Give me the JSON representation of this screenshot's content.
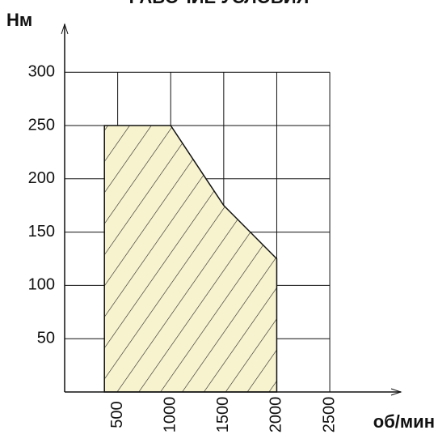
{
  "chart_data": {
    "type": "area",
    "title": "РАБОЧИЕ УСЛОВИЯ",
    "y_label": "Нм",
    "x_label": "об/мин",
    "series": [
      {
        "x": [
          375,
          375,
          1000,
          1500,
          2000,
          2000
        ],
        "values": [
          0,
          250,
          250,
          175,
          125,
          0
        ],
        "color": "#f7f3cf"
      }
    ],
    "xlim": [
      0,
      3170
    ],
    "ylim": [
      0,
      345
    ],
    "xticks": [
      500,
      1000,
      1500,
      2000,
      2500
    ],
    "yticks": [
      50,
      100,
      150,
      200,
      250,
      300
    ],
    "grid": true
  }
}
